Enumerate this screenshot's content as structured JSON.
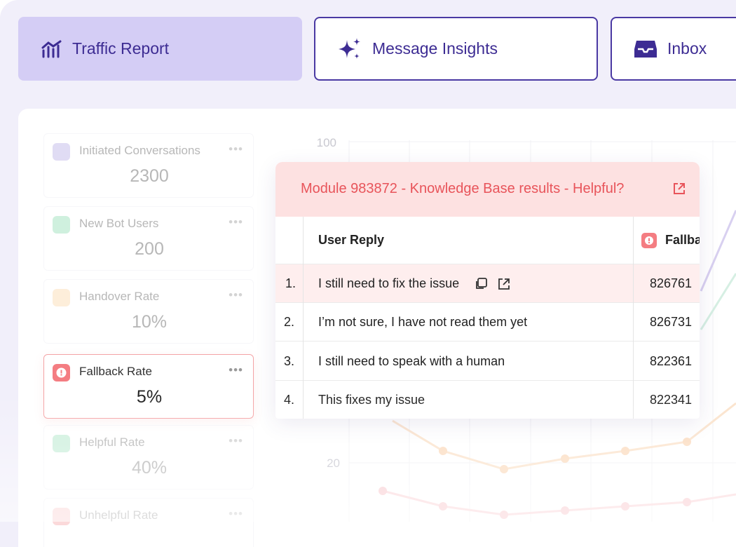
{
  "tabs": [
    {
      "label": "Traffic Report"
    },
    {
      "label": "Message Insights"
    },
    {
      "label": "Inbox"
    }
  ],
  "metrics": [
    {
      "label": "Initiated Conversations",
      "value": "2300"
    },
    {
      "label": "New Bot Users",
      "value": "200"
    },
    {
      "label": "Handover Rate",
      "value": "10%"
    },
    {
      "label": "Fallback Rate",
      "value": "5%"
    },
    {
      "label": "Helpful Rate",
      "value": "40%"
    },
    {
      "label": "Unhelpful Rate"
    }
  ],
  "chart": {
    "y_labels": [
      "100",
      "20"
    ]
  },
  "table": {
    "title": "Module 983872 - Knowledge Base results - Helpful?",
    "columns": [
      "User Reply",
      "Fallback"
    ],
    "rows": [
      [
        "1.",
        "I still need to fix the issue",
        "826761"
      ],
      [
        "2.",
        "I’m not sure, I have not read them yet",
        "826731"
      ],
      [
        "3.",
        "I still need to speak with a human",
        "822361"
      ],
      [
        "4.",
        "This fixes my issue",
        "822341"
      ]
    ]
  }
}
